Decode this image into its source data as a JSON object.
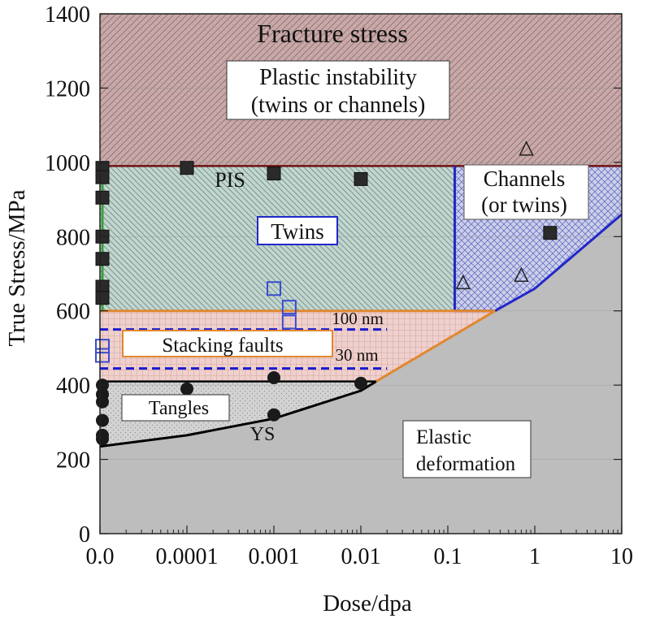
{
  "chart_data": {
    "type": "area",
    "title": "",
    "xlabel": "Dose/dpa",
    "ylabel": "True Stress/MPa",
    "x_scale": "log",
    "x_ticks": [
      "0.0",
      "0.0001",
      "0.001",
      "0.01",
      "0.1",
      "1",
      "10"
    ],
    "x_tick_values": [
      1e-05,
      0.0001,
      0.001,
      0.01,
      0.1,
      1,
      10
    ],
    "y_ticks": [
      "0",
      "200",
      "400",
      "600",
      "800",
      "1000",
      "1200",
      "1400"
    ],
    "y_tick_values": [
      0,
      200,
      400,
      600,
      800,
      1000,
      1200,
      1400
    ],
    "ylim": [
      0,
      1400
    ],
    "grid": true,
    "colors": {
      "fracture_region": "#c9a9a9",
      "fracture_border": "#6e1414",
      "twins_region": "#b9cdc6",
      "channels_region": "#c4c8e4",
      "channels_border": "#2228c8",
      "stacking_region": "#eac6c2",
      "stacking_border": "#e08830",
      "tangles_region": "#cfcfcf",
      "elastic_region": "#bdbdbd",
      "ys_line": "#000000",
      "dashed_line": "#1a1acd"
    },
    "regions": [
      {
        "name": "Fracture stress",
        "y_range": [
          990,
          1400
        ]
      },
      {
        "name": "Twins",
        "x_range": [
          1e-05,
          0.12
        ],
        "y_range": [
          600,
          990
        ]
      },
      {
        "name": "Channels (or twins)",
        "x_range": [
          0.12,
          10
        ],
        "y_range": [
          600,
          990
        ]
      },
      {
        "name": "Stacking faults",
        "y_range": [
          410,
          600
        ]
      },
      {
        "name": "Tangles",
        "y_range": [
          230,
          410
        ]
      },
      {
        "name": "Elastic deformation"
      }
    ],
    "boundary_ys": {
      "name": "YS",
      "x": [
        1e-05,
        0.0001,
        0.001,
        0.01,
        0.015
      ],
      "y": [
        235,
        265,
        310,
        385,
        410
      ]
    },
    "boundary_pis": {
      "name": "PIS",
      "x": [
        1e-05,
        10
      ],
      "y": [
        990,
        990
      ]
    },
    "boundary_sf_upper": {
      "x": [
        1e-05,
        0.35
      ],
      "y": [
        600,
        600
      ]
    },
    "boundary_sf_diag": {
      "x": [
        0.015,
        0.35
      ],
      "y": [
        410,
        600
      ]
    },
    "boundary_channels": {
      "x": [
        0.12,
        0.12,
        0.35,
        1,
        10
      ],
      "y": [
        990,
        600,
        600,
        660,
        860
      ]
    },
    "dashed_lines": [
      {
        "label": "100 nm",
        "y": 550
      },
      {
        "label": "30 nm",
        "y": 445
      }
    ],
    "markers_filled_circle": [
      {
        "x": 1e-05,
        "y": 400
      },
      {
        "x": 1e-05,
        "y": 375
      },
      {
        "x": 1e-05,
        "y": 355
      },
      {
        "x": 1e-05,
        "y": 305
      },
      {
        "x": 1e-05,
        "y": 265
      },
      {
        "x": 1e-05,
        "y": 255
      },
      {
        "x": 0.0001,
        "y": 390
      },
      {
        "x": 0.001,
        "y": 420
      },
      {
        "x": 0.001,
        "y": 320
      },
      {
        "x": 0.01,
        "y": 405
      }
    ],
    "markers_filled_square": [
      {
        "x": 1e-05,
        "y": 985
      },
      {
        "x": 1e-05,
        "y": 960
      },
      {
        "x": 1e-05,
        "y": 905
      },
      {
        "x": 1e-05,
        "y": 800
      },
      {
        "x": 1e-05,
        "y": 740
      },
      {
        "x": 1e-05,
        "y": 665
      },
      {
        "x": 1e-05,
        "y": 635
      },
      {
        "x": 0.0001,
        "y": 985
      },
      {
        "x": 0.001,
        "y": 970
      },
      {
        "x": 0.01,
        "y": 955
      },
      {
        "x": 1.5,
        "y": 810
      }
    ],
    "markers_open_square": [
      {
        "x": 1e-05,
        "y": 505
      },
      {
        "x": 1e-05,
        "y": 480
      },
      {
        "x": 0.001,
        "y": 660
      },
      {
        "x": 0.0015,
        "y": 610
      },
      {
        "x": 0.0015,
        "y": 570
      }
    ],
    "markers_open_triangle": [
      {
        "x": 0.8,
        "y": 1035
      },
      {
        "x": 0.7,
        "y": 695
      },
      {
        "x": 0.15,
        "y": 675
      }
    ],
    "annotations": {
      "fracture": "Fracture stress",
      "plastic_line1": "Plastic instability",
      "plastic_line2": "(twins or channels)",
      "pis": "PIS",
      "channels_line1": "Channels",
      "channels_line2": "(or twins)",
      "twins": "Twins",
      "line_100nm": "100 nm",
      "stacking": "Stacking faults",
      "line_30nm": "30 nm",
      "tangles": "Tangles",
      "ys": "YS",
      "elastic_line1": "Elastic",
      "elastic_line2": "deformation"
    }
  }
}
